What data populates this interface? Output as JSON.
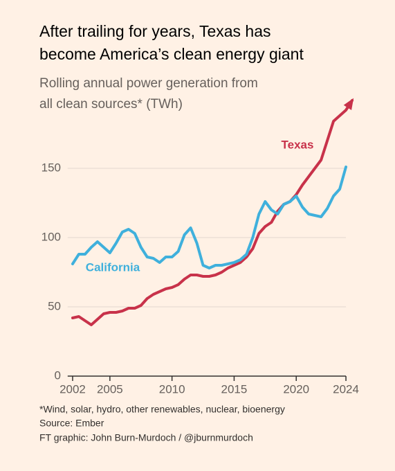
{
  "chart_data": {
    "type": "line",
    "title_lines": [
      "After trailing for years, Texas has",
      "become America’s clean energy giant"
    ],
    "subtitle_lines": [
      "Rolling annual power generation from",
      "all clean sources* (TWh)"
    ],
    "footnotes": [
      "*Wind, solar, hydro, other renewables, nuclear, bioenergy",
      "Source: Ember",
      "FT graphic: John Burn-Murdoch / @jburnmurdoch"
    ],
    "x": [
      2002,
      2002.5,
      2003,
      2003.5,
      2004,
      2004.5,
      2005,
      2005.5,
      2006,
      2006.5,
      2007,
      2007.5,
      2008,
      2008.5,
      2009,
      2009.5,
      2010,
      2010.5,
      2011,
      2011.5,
      2012,
      2012.5,
      2013,
      2013.5,
      2014,
      2014.5,
      2015,
      2015.5,
      2016,
      2016.5,
      2017,
      2017.5,
      2018,
      2018.5,
      2019,
      2019.5,
      2020,
      2020.5,
      2021,
      2021.5,
      2022,
      2022.5,
      2023,
      2023.5,
      2024,
      2024.5
    ],
    "series": [
      {
        "name": "Texas",
        "color": "#c8324a",
        "values": [
          42,
          43,
          40,
          37,
          41,
          45,
          46,
          46,
          47,
          49,
          49,
          51,
          56,
          59,
          61,
          63,
          64,
          66,
          70,
          73,
          73,
          72,
          72,
          73,
          75,
          78,
          80,
          82,
          86,
          92,
          103,
          108,
          111,
          119,
          124,
          126,
          131,
          138,
          144,
          150,
          156,
          170,
          184,
          188,
          192,
          199
        ]
      },
      {
        "name": "California",
        "color": "#3fb0dc",
        "values": [
          81,
          88,
          88,
          93,
          97,
          93,
          89,
          96,
          104,
          106,
          103,
          93,
          86,
          85,
          82,
          86,
          86,
          90,
          102,
          107,
          96,
          80,
          78,
          80,
          80,
          81,
          82,
          84,
          88,
          100,
          117,
          126,
          120,
          117,
          124,
          126,
          130,
          122,
          117,
          116,
          115,
          121,
          130,
          135,
          151,
          null
        ]
      }
    ],
    "xlim": [
      2001.6,
      2025.5
    ],
    "xticks": [
      2002,
      2005,
      2010,
      2015,
      2020,
      2024
    ],
    "ylim": [
      0,
      175
    ],
    "yticks": [
      0,
      50,
      100,
      150
    ],
    "grid": true
  }
}
